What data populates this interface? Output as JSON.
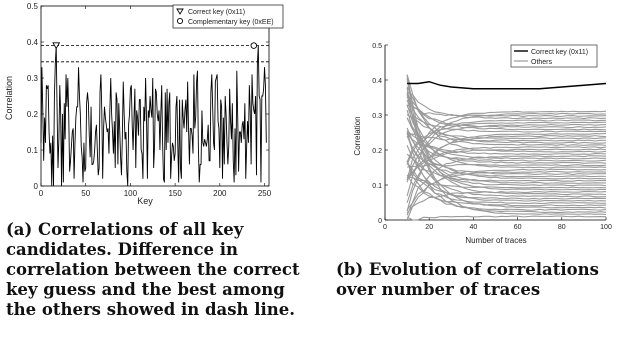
{
  "figure": {
    "caption_a": "(a) Correlations of all key candidates. Difference in correlation between the correct key guess and the best among the others showed in dash line.",
    "caption_b": "(b) Evolution of correlations over number of traces"
  },
  "chart_data": [
    {
      "id": "a",
      "type": "line",
      "xlabel": "Key",
      "ylabel": "Correlation",
      "xlim": [
        0,
        255
      ],
      "ylim": [
        0,
        0.5
      ],
      "xticks": [
        0,
        50,
        100,
        150,
        200,
        250
      ],
      "yticks": [
        0,
        0.1,
        0.2,
        0.3,
        0.4,
        0.5
      ],
      "legend_position": "top-right",
      "legend": [
        {
          "marker": "triangle-down",
          "label": "Correct key (0x11)"
        },
        {
          "marker": "circle",
          "label": "Complementary key (0xEE)"
        }
      ],
      "series": [
        {
          "x_start": 0,
          "x_step": 1,
          "values": [
            0.12,
            0.33,
            0.21,
            0.07,
            0.19,
            0.12,
            0.28,
            0.27,
            0.28,
            0.15,
            0.09,
            0.12,
            0.0,
            0.14,
            0.0,
            0.25,
            0.34,
            0.39,
            0.21,
            0.05,
            0.13,
            0.28,
            0.2,
            0.0,
            0.2,
            0.01,
            0.23,
            0.13,
            0.31,
            0.22,
            0.3,
            0.2,
            0.04,
            0.07,
            0.11,
            0.15,
            0.16,
            0.02,
            0.12,
            0.19,
            0.22,
            0.22,
            0.33,
            0.25,
            0.2,
            0.11,
            0.08,
            0.01,
            0.12,
            0.04,
            0.05,
            0.23,
            0.26,
            0.23,
            0.14,
            0.08,
            0.22,
            0.06,
            0.06,
            0.07,
            0.1,
            0.15,
            0.17,
            0.1,
            0.03,
            0.05,
            0.26,
            0.31,
            0.21,
            0.02,
            0.16,
            0.22,
            0.19,
            0.17,
            0.15,
            0.16,
            0.09,
            0.21,
            0.3,
            0.2,
            0.15,
            0.09,
            0.18,
            0.05,
            0.26,
            0.24,
            0.06,
            0.23,
            0.16,
            0.08,
            0.03,
            0.14,
            0.29,
            0.2,
            0.13,
            0.15,
            0.04,
            0.0,
            0.17,
            0.2,
            0.27,
            0.28,
            0.17,
            0.1,
            0.19,
            0.27,
            0.05,
            0.21,
            0.19,
            0.14,
            0.24,
            0.24,
            0.1,
            0.09,
            0.02,
            0.22,
            0.18,
            0.3,
            0.19,
            0.02,
            0.21,
            0.19,
            0.25,
            0.21,
            0.19,
            0.3,
            0.05,
            0.11,
            0.27,
            0.26,
            0.2,
            0.18,
            0.21,
            0.1,
            0.2,
            0.28,
            0.12,
            0.02,
            0.01,
            0.26,
            0.1,
            0.27,
            0.12,
            0.23,
            0.26,
            0.02,
            0.08,
            0.12,
            0.11,
            0.07,
            0.09,
            0.22,
            0.25,
            0.11,
            0.01,
            0.24,
            0.05,
            0.02,
            0.24,
            0.19,
            0.16,
            0.21,
            0.24,
            0.15,
            0.29,
            0.16,
            0.06,
            0.16,
            0.16,
            0.14,
            0.09,
            0.31,
            0.16,
            0.19,
            0.29,
            0.32,
            0.11,
            0.01,
            0.06,
            0.06,
            0.21,
            0.12,
            0.11,
            0.13,
            0.12,
            0.11,
            0.13,
            0.17,
            0.07,
            0.07,
            0.26,
            0.31,
            0.22,
            0.12,
            0.1,
            0.29,
            0.3,
            0.31,
            0.18,
            0.16,
            0.05,
            0.24,
            0.22,
            0.02,
            0.19,
            0.06,
            0.25,
            0.2,
            0.12,
            0.06,
            0.11,
            0.27,
            0.18,
            0.13,
            0.23,
            0.07,
            0.01,
            0.16,
            0.03,
            0.32,
            0.19,
            0.04,
            0.15,
            0.15,
            0.12,
            0.17,
            0.18,
            0.13,
            0.23,
            0.02,
            0.11,
            0.18,
            0.12,
            0.28,
            0.21,
            0.06,
            0.31,
            0.23,
            0.21,
            0.2,
            0.25,
            0.03,
            0.34,
            0.39,
            0.25,
            0.24,
            0.01,
            0.25,
            0.25,
            0.27,
            0.33,
            0.28,
            0.12
          ]
        }
      ],
      "markers": [
        {
          "series": "Correct key (0x11)",
          "x": 17,
          "y": 0.39,
          "shape": "triangle-down"
        },
        {
          "series": "Complementary key (0xEE)",
          "x": 238,
          "y": 0.39,
          "shape": "circle"
        }
      ],
      "reference_lines": [
        {
          "y": 0.39,
          "style": "dash"
        },
        {
          "y": 0.345,
          "style": "dash"
        }
      ]
    },
    {
      "id": "b",
      "type": "line",
      "xlabel": "Number of traces",
      "ylabel": "Correlation",
      "xlim": [
        0,
        100
      ],
      "ylim": [
        0,
        0.5
      ],
      "xticks": [
        0,
        20,
        40,
        60,
        80,
        100
      ],
      "yticks": [
        0,
        0.1,
        0.2,
        0.3,
        0.4,
        0.5
      ],
      "legend_position": "top-right",
      "legend": [
        {
          "color": "#000000",
          "label": "Correct key (0x11)"
        },
        {
          "color": "#9a9a9a",
          "label": "Others"
        }
      ],
      "x": [
        10,
        15,
        20,
        25,
        30,
        40,
        50,
        60,
        70,
        80,
        90,
        100
      ],
      "correct_key": {
        "name": "Correct key (0x11)",
        "color": "#000000",
        "values": [
          0.39,
          0.39,
          0.395,
          0.385,
          0.38,
          0.375,
          0.375,
          0.375,
          0.375,
          0.38,
          0.385,
          0.39
        ]
      },
      "others": {
        "name": "Others",
        "color": "#9a9a9a",
        "x_start": 10,
        "x_end": 100,
        "count": 48,
        "start_min": 0.0,
        "start_max": 0.43,
        "final_min": 0.01,
        "final_max": 0.31
      }
    }
  ]
}
